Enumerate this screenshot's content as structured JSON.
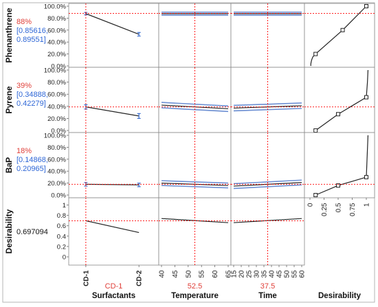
{
  "chart_data": {
    "type": "line",
    "title": "",
    "factors": [
      {
        "id": "surfactants",
        "label": "Surfactants",
        "kind": "categorical",
        "categories": [
          "CD-1",
          "CD-2"
        ],
        "current": "CD-1"
      },
      {
        "id": "temperature",
        "label": "Temperature",
        "kind": "continuous",
        "range": [
          40,
          65
        ],
        "ticks": [
          "40",
          "45",
          "50",
          "55",
          "60",
          "65"
        ],
        "current": 52.5,
        "current_label": "52.5"
      },
      {
        "id": "time",
        "label": "Time",
        "kind": "continuous",
        "range": [
          15,
          60
        ],
        "ticks": [
          "15",
          "20",
          "25",
          "30",
          "35",
          "40",
          "45",
          "50",
          "55",
          "60"
        ],
        "current": 37.5,
        "current_label": "37.5"
      }
    ],
    "desirability_axis": {
      "label": "Desirability",
      "range": [
        0,
        1
      ],
      "ticks": [
        "0",
        "0.25",
        "0.5",
        "0.75",
        "1"
      ]
    },
    "responses": [
      {
        "id": "phenanthrene",
        "label": "Phenanthrene",
        "current_label": "88%",
        "ci_label": "[0.85616,\n0.89551]",
        "current": 0.88,
        "ylim": [
          0,
          1
        ],
        "ticks": [
          "100.0%",
          "80.0%",
          "60.0%",
          "40.0%",
          "20.0%",
          "0.0%"
        ],
        "surfactants": {
          "x": [
            "CD-1",
            "CD-2"
          ],
          "y": [
            0.875,
            0.53
          ],
          "err": [
            0.02,
            0.03
          ]
        },
        "temperature": {
          "x": [
            40,
            65
          ],
          "y": [
            0.875,
            0.875
          ],
          "ci": 0.025
        },
        "time": {
          "x": [
            15,
            60
          ],
          "y": [
            0.875,
            0.875
          ],
          "ci": 0.025
        },
        "desirability": {
          "x": [
            0.015,
            0.015,
            0.02,
            0.03,
            0.05,
            0.1,
            0.58,
            1.0
          ],
          "y": [
            0.0,
            0.03,
            0.06,
            0.1,
            0.15,
            0.2,
            0.6,
            1.0
          ],
          "markers": [
            [
              0.1,
              0.2
            ],
            [
              0.58,
              0.6
            ],
            [
              1.0,
              1.0
            ]
          ]
        }
      },
      {
        "id": "pyrene",
        "label": "Pyrene",
        "current_label": "39%",
        "ci_label": "[0.34888,\n0.42279]",
        "current": 0.39,
        "ylim": [
          0,
          1
        ],
        "ticks": [
          "100.0%",
          "80.0%",
          "60.0%",
          "40.0%",
          "20.0%",
          "0.0%"
        ],
        "surfactants": {
          "x": [
            "CD-1",
            "CD-2"
          ],
          "y": [
            0.39,
            0.24
          ],
          "err": [
            0.035,
            0.04
          ]
        },
        "temperature": {
          "x": [
            40,
            65
          ],
          "y": [
            0.42,
            0.36
          ],
          "ci": 0.045
        },
        "time": {
          "x": [
            15,
            60
          ],
          "y": [
            0.37,
            0.41
          ],
          "ci": 0.045
        },
        "desirability": {
          "x": [
            0.1,
            0.5,
            1.0,
            1.02,
            1.03
          ],
          "y": [
            0.0,
            0.27,
            0.55,
            0.8,
            1.0
          ],
          "markers": [
            [
              0.1,
              0.0
            ],
            [
              0.5,
              0.27
            ],
            [
              1.0,
              0.55
            ]
          ]
        }
      },
      {
        "id": "bap",
        "label": "BaP",
        "current_label": "18%",
        "ci_label": "[0.14868,\n0.20965]",
        "current": 0.18,
        "ylim": [
          0,
          1
        ],
        "ticks": [
          "100.0%",
          "80.0%",
          "60.0%",
          "40.0%",
          "20.0%",
          "0.0%"
        ],
        "surfactants": {
          "x": [
            "CD-1",
            "CD-2"
          ],
          "y": [
            0.18,
            0.17
          ],
          "err": [
            0.03,
            0.03
          ]
        },
        "temperature": {
          "x": [
            40,
            65
          ],
          "y": [
            0.2,
            0.16
          ],
          "ci": 0.04
        },
        "time": {
          "x": [
            15,
            60
          ],
          "y": [
            0.15,
            0.21
          ],
          "ci": 0.04
        },
        "desirability": {
          "x": [
            0.1,
            0.5,
            1.0,
            1.03
          ],
          "y": [
            0.0,
            0.16,
            0.3,
            1.0
          ],
          "markers": [
            [
              0.1,
              0.0
            ],
            [
              0.5,
              0.16
            ],
            [
              1.0,
              0.3
            ]
          ]
        }
      },
      {
        "id": "desirability",
        "label": "Desirability",
        "current_label": "0.697094",
        "ci_label": "",
        "current": 0.697,
        "ylim": [
          0,
          1.1
        ],
        "ticks": [
          "1",
          "0.8",
          "0.6",
          "0.4",
          "0.2",
          "0"
        ],
        "surfactants": {
          "x": [
            "CD-1",
            "CD-2"
          ],
          "y": [
            0.697,
            0.47
          ]
        },
        "temperature": {
          "x": [
            40,
            65
          ],
          "y": [
            0.74,
            0.66
          ]
        },
        "time": {
          "x": [
            15,
            60
          ],
          "y": [
            0.66,
            0.74
          ]
        }
      }
    ],
    "grid": false,
    "legend": "none"
  },
  "colors": {
    "line": "#222222",
    "band": "#6c8fd3",
    "reference": "#ff0000",
    "current_value": "#e0403a",
    "ci_text": "#2e66d6",
    "frame": "#888888",
    "error_bar": "#3b6fd0"
  }
}
